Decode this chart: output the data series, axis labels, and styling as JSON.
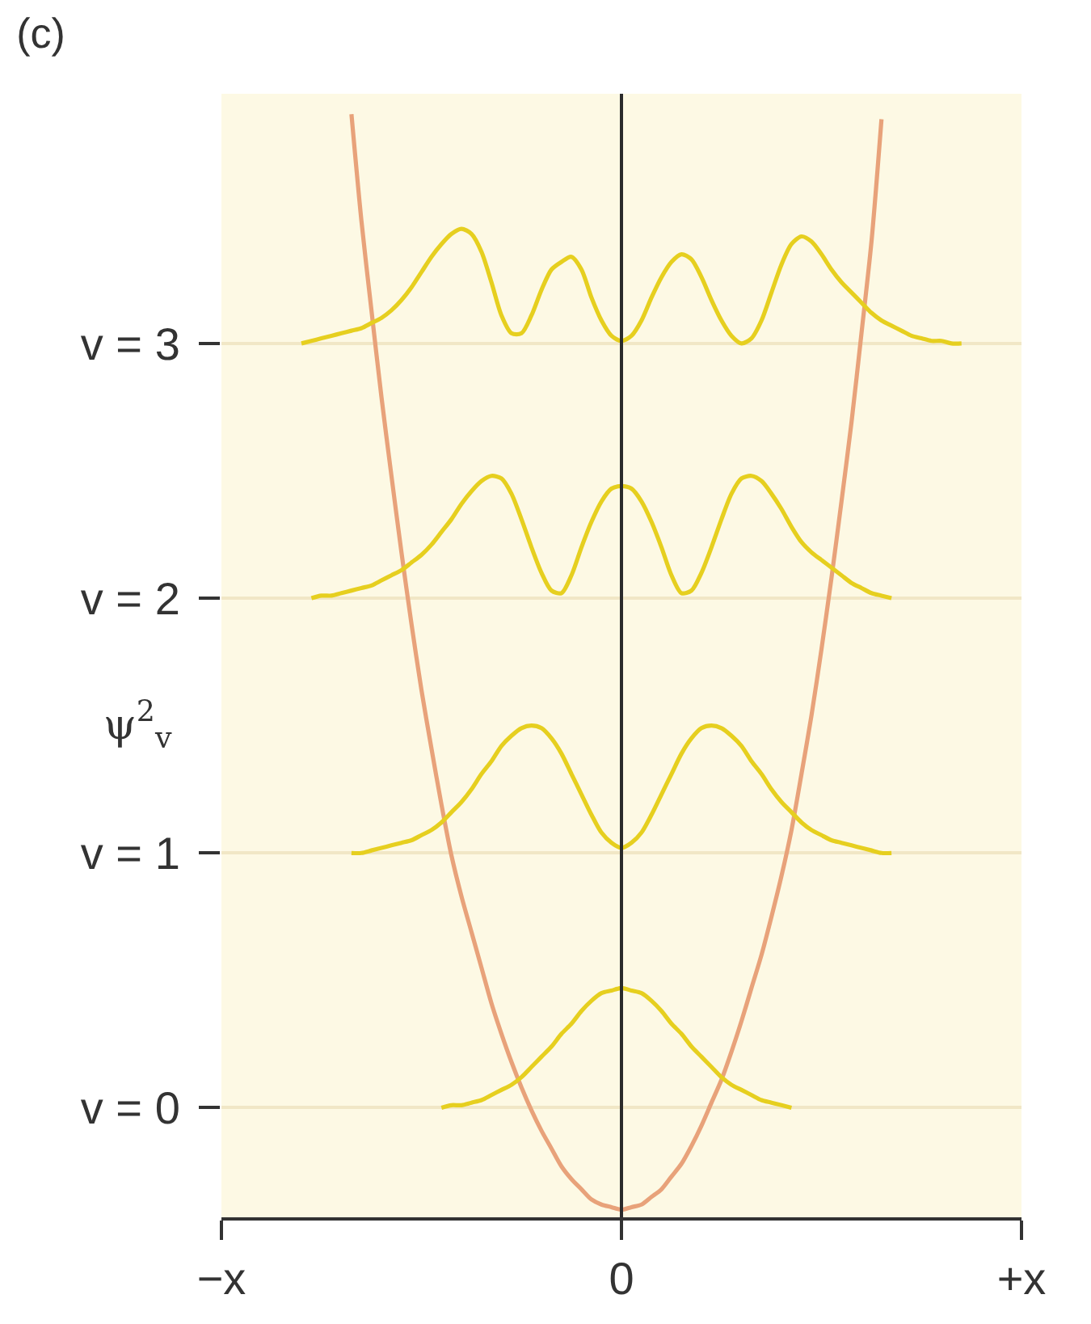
{
  "chart_data": {
    "type": "line",
    "title": "(c)",
    "ylabel": "ψ$^{2}$$_{v}$",
    "categories": [
      "−x",
      null,
      null,
      null,
      null,
      null,
      null,
      null,
      null,
      null,
      null,
      null,
      null,
      null,
      null,
      null,
      null,
      null,
      null,
      null,
      null,
      null,
      null,
      null,
      null,
      null,
      null,
      null,
      null,
      null,
      null,
      null,
      null,
      null,
      null,
      null,
      null,
      null,
      null,
      null,
      "0",
      null,
      null,
      null,
      null,
      null,
      null,
      null,
      null,
      null,
      null,
      null,
      null,
      null,
      null,
      null,
      null,
      null,
      null,
      null,
      null,
      null,
      null,
      null,
      null,
      null,
      null,
      null,
      null,
      null,
      null,
      null,
      null,
      null,
      null,
      null,
      null,
      null,
      null,
      null,
      "+x"
    ],
    "ylim": [
      -0.43,
      3.98
    ],
    "yticks": [
      {
        "value": 0,
        "label": "v = 0"
      },
      {
        "value": 1,
        "label": "v = 1"
      },
      {
        "value": 2,
        "label": "v = 2"
      },
      {
        "value": 3,
        "label": "v = 3"
      }
    ],
    "grid": "y",
    "line_style": "solid",
    "ref_lines": [
      {
        "axis": "x",
        "value": "0",
        "color": "#2b2b2b"
      }
    ],
    "series": [
      {
        "color": "#e8a27a",
        "values": [
          null,
          null,
          null,
          null,
          null,
          null,
          null,
          null,
          null,
          null,
          null,
          null,
          null,
          3.9,
          3.48,
          3.13,
          2.79,
          2.48,
          2.18,
          1.9,
          1.64,
          1.41,
          1.19,
          0.99,
          0.83,
          0.69,
          0.55,
          0.41,
          0.29,
          0.18,
          0.08,
          -0.01,
          -0.09,
          -0.16,
          -0.23,
          -0.28,
          -0.32,
          -0.36,
          -0.38,
          -0.39,
          -0.4,
          -0.39,
          -0.38,
          -0.35,
          -0.32,
          -0.27,
          -0.22,
          -0.15,
          -0.07,
          0.02,
          0.11,
          0.22,
          0.34,
          0.47,
          0.6,
          0.75,
          0.91,
          1.09,
          1.31,
          1.54,
          1.8,
          2.08,
          2.38,
          2.69,
          3.04,
          3.4,
          3.88,
          null,
          null,
          null,
          null,
          null,
          null,
          null,
          null,
          null,
          null,
          null,
          null,
          null,
          null
        ]
      },
      {
        "color": "#e6cf1f",
        "values": [
          null,
          null,
          null,
          null,
          null,
          null,
          null,
          null,
          null,
          null,
          null,
          null,
          null,
          null,
          null,
          null,
          null,
          null,
          null,
          null,
          null,
          null,
          0.0,
          0.01,
          0.01,
          0.02,
          0.03,
          0.05,
          0.07,
          0.09,
          0.12,
          0.16,
          0.2,
          0.24,
          0.29,
          0.33,
          0.38,
          0.42,
          0.45,
          0.46,
          0.47,
          0.46,
          0.45,
          0.42,
          0.38,
          0.33,
          0.29,
          0.24,
          0.2,
          0.16,
          0.12,
          0.09,
          0.07,
          0.05,
          0.03,
          0.02,
          0.01,
          0.0,
          null,
          null,
          null,
          null,
          null,
          null,
          null,
          null,
          null,
          null,
          null,
          null,
          null,
          null,
          null,
          null,
          null,
          null,
          null,
          null,
          null,
          null,
          null
        ]
      },
      {
        "color": "#e6cf1f",
        "values": [
          null,
          null,
          null,
          null,
          null,
          null,
          null,
          null,
          null,
          null,
          null,
          null,
          null,
          1.0,
          1.0,
          1.01,
          1.02,
          1.03,
          1.04,
          1.05,
          1.07,
          1.09,
          1.12,
          1.16,
          1.2,
          1.25,
          1.31,
          1.36,
          1.42,
          1.46,
          1.49,
          1.5,
          1.49,
          1.45,
          1.39,
          1.31,
          1.23,
          1.15,
          1.08,
          1.04,
          1.02,
          1.04,
          1.08,
          1.15,
          1.23,
          1.31,
          1.39,
          1.45,
          1.49,
          1.5,
          1.49,
          1.46,
          1.42,
          1.36,
          1.31,
          1.25,
          1.2,
          1.16,
          1.12,
          1.09,
          1.07,
          1.05,
          1.04,
          1.03,
          1.02,
          1.01,
          1.0,
          1.0,
          null,
          null,
          null,
          null,
          null,
          null,
          null,
          null,
          null,
          null,
          null,
          null,
          null
        ]
      },
      {
        "color": "#e6cf1f",
        "values": [
          null,
          null,
          null,
          null,
          null,
          null,
          null,
          null,
          null,
          2.0,
          2.01,
          2.01,
          2.02,
          2.03,
          2.04,
          2.05,
          2.07,
          2.09,
          2.11,
          2.14,
          2.17,
          2.21,
          2.26,
          2.31,
          2.37,
          2.42,
          2.46,
          2.48,
          2.47,
          2.41,
          2.31,
          2.2,
          2.1,
          2.03,
          2.02,
          2.09,
          2.2,
          2.3,
          2.38,
          2.43,
          2.44,
          2.43,
          2.38,
          2.3,
          2.2,
          2.09,
          2.02,
          2.03,
          2.1,
          2.2,
          2.31,
          2.41,
          2.47,
          2.48,
          2.46,
          2.41,
          2.35,
          2.28,
          2.22,
          2.18,
          2.15,
          2.12,
          2.09,
          2.06,
          2.04,
          2.02,
          2.01,
          2.0,
          null,
          null,
          null,
          null,
          null,
          null,
          null,
          null,
          null,
          null,
          null,
          null,
          null
        ]
      },
      {
        "color": "#e6cf1f",
        "values": [
          null,
          null,
          null,
          null,
          null,
          null,
          null,
          null,
          3.0,
          3.01,
          3.02,
          3.03,
          3.04,
          3.05,
          3.06,
          3.08,
          3.1,
          3.13,
          3.17,
          3.22,
          3.28,
          3.34,
          3.39,
          3.43,
          3.45,
          3.43,
          3.36,
          3.24,
          3.11,
          3.04,
          3.04,
          3.11,
          3.21,
          3.29,
          3.32,
          3.34,
          3.29,
          3.18,
          3.09,
          3.03,
          3.01,
          3.03,
          3.09,
          3.18,
          3.26,
          3.32,
          3.35,
          3.33,
          3.26,
          3.17,
          3.09,
          3.03,
          3.0,
          3.02,
          3.09,
          3.2,
          3.31,
          3.39,
          3.42,
          3.4,
          3.35,
          3.29,
          3.24,
          3.2,
          3.16,
          3.12,
          3.09,
          3.07,
          3.05,
          3.03,
          3.02,
          3.01,
          3.01,
          3.0,
          3.0,
          null,
          null,
          null,
          null,
          null,
          null
        ]
      }
    ]
  }
}
